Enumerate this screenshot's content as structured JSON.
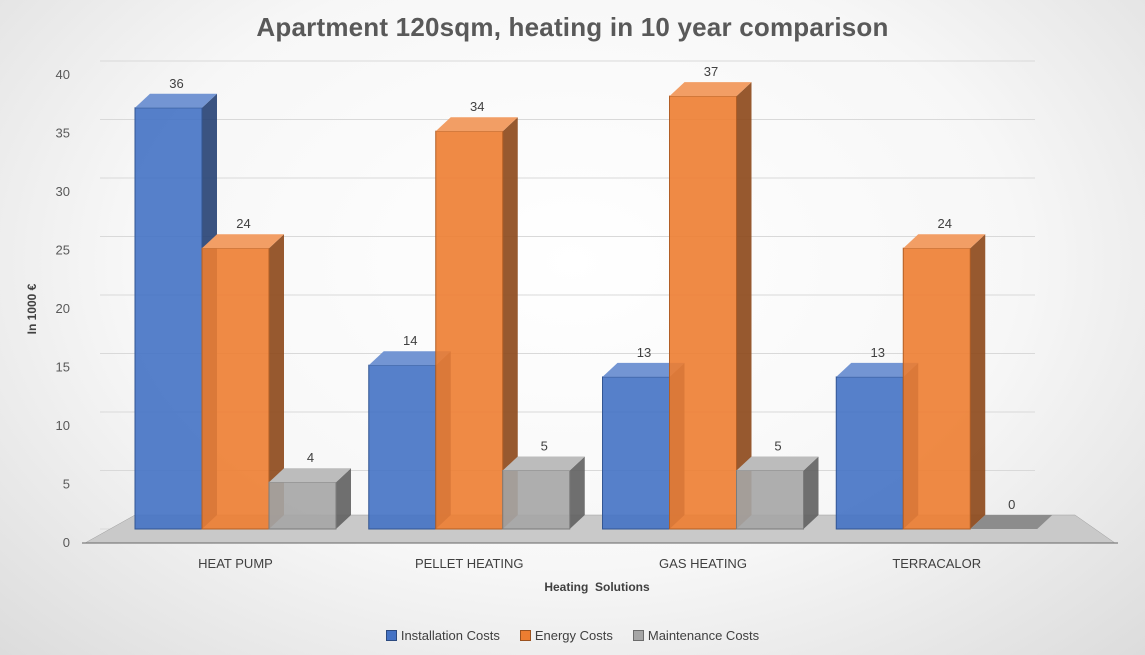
{
  "colors": {
    "installation": "#4472c4",
    "energy": "#ed7d31",
    "maintenance": "#a5a5a5",
    "text": "#595959",
    "grid": "#d9d9d9"
  },
  "chart_data": {
    "type": "bar",
    "title": "Apartment 120sqm, heating in 10 year comparison",
    "xlabel": "Heating  Solutions",
    "ylabel": "In 1000 €",
    "ylim": [
      0,
      40
    ],
    "yticks": [
      0,
      5,
      10,
      15,
      20,
      25,
      30,
      35,
      40
    ],
    "categories": [
      "HEAT PUMP",
      "PELLET HEATING",
      "GAS HEATING",
      "TERRACALOR"
    ],
    "series": [
      {
        "name": "Installation Costs",
        "values": [
          36,
          14,
          13,
          13
        ]
      },
      {
        "name": "Energy Costs",
        "values": [
          24,
          34,
          37,
          24
        ]
      },
      {
        "name": "Maintenance Costs",
        "values": [
          4,
          5,
          5,
          0
        ]
      }
    ],
    "legend_position": "bottom",
    "grid": true
  }
}
